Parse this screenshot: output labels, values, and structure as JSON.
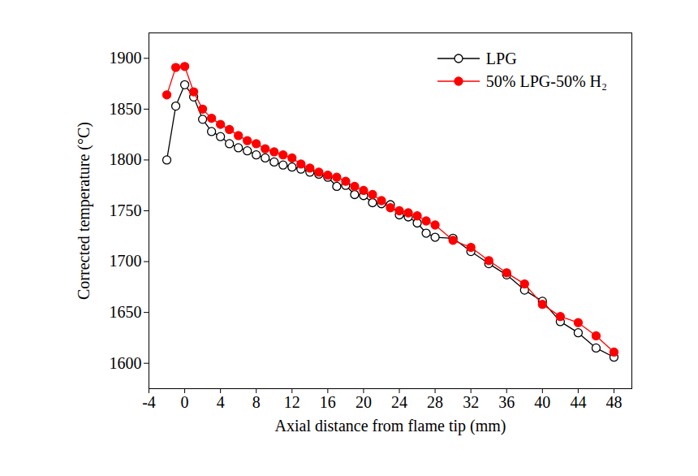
{
  "chart_data": {
    "type": "line",
    "x_label": "Axial distance from flame tip (mm)",
    "y_label": "Corrected temperature (°C)",
    "xlim": [
      -4,
      50
    ],
    "xticks": [
      -4,
      0,
      4,
      8,
      12,
      16,
      20,
      24,
      28,
      32,
      36,
      40,
      44,
      48
    ],
    "ylim": [
      1575,
      1925
    ],
    "yticks": [
      1600,
      1650,
      1700,
      1750,
      1800,
      1850,
      1900
    ],
    "grid": false,
    "legend": "top-right",
    "x": [
      -2,
      -1,
      0,
      1,
      2,
      3,
      4,
      5,
      6,
      7,
      8,
      9,
      10,
      11,
      12,
      13,
      14,
      15,
      16,
      17,
      18,
      19,
      20,
      21,
      22,
      23,
      24,
      25,
      26,
      27,
      28,
      30,
      32,
      34,
      36,
      38,
      40,
      42,
      44,
      46,
      48
    ],
    "series": [
      {
        "name": "LPG",
        "color": "#000000",
        "marker": "open circle",
        "line_style": "solid",
        "values": [
          1800,
          1853,
          1874,
          1862,
          1840,
          1828,
          1823,
          1816,
          1812,
          1809,
          1805,
          1802,
          1798,
          1795,
          1793,
          1791,
          1788,
          1786,
          1783,
          1774,
          1775,
          1766,
          1765,
          1758,
          1757,
          1756,
          1746,
          1744,
          1738,
          1728,
          1724,
          1723,
          1710,
          1698,
          1687,
          1672,
          1661,
          1641,
          1630,
          1615,
          1606
        ]
      },
      {
        "name": "50% LPG-50% H₂",
        "color": "#ff0000",
        "marker": "filled circle",
        "line_style": "solid",
        "values": [
          1864,
          1891,
          1892,
          1867,
          1850,
          1841,
          1835,
          1830,
          1824,
          1819,
          1816,
          1811,
          1808,
          1805,
          1802,
          1796,
          1792,
          1788,
          1785,
          1783,
          1779,
          1774,
          1770,
          1766,
          1760,
          1753,
          1750,
          1748,
          1745,
          1740,
          1736,
          1721,
          1714,
          1701,
          1689,
          1678,
          1658,
          1646,
          1640,
          1627,
          1611
        ]
      }
    ]
  }
}
